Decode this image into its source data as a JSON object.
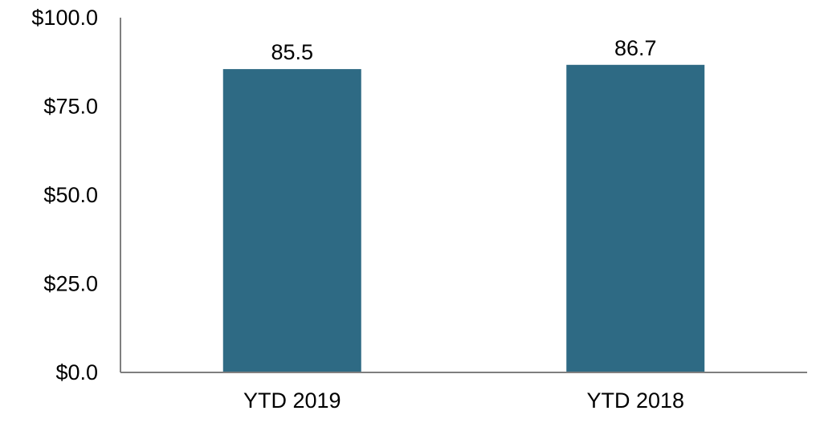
{
  "chart_data": {
    "type": "bar",
    "title": "",
    "xlabel": "",
    "ylabel": "",
    "categories": [
      "YTD 2019",
      "YTD 2018"
    ],
    "values": [
      85.5,
      86.7
    ],
    "data_labels": [
      "85.5",
      "86.7"
    ],
    "ylim": [
      0,
      100
    ],
    "y_ticks": [
      0,
      25,
      50,
      75,
      100
    ],
    "y_tick_labels": [
      "$0.0",
      "$25.0",
      "$50.0",
      "$75.0",
      "$100.0"
    ],
    "grid": false,
    "legend": "none",
    "bar_color": "#2e6a84",
    "axis_color": "#7f7f7f"
  }
}
